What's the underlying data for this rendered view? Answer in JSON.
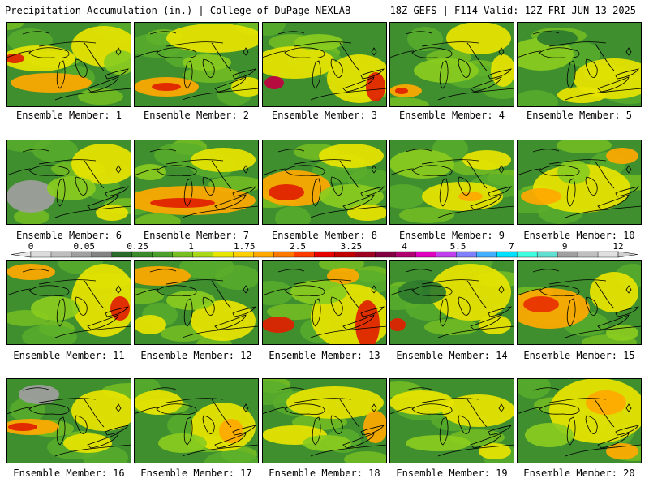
{
  "header": {
    "left": "Precipitation Accumulation (in.) | College of DuPage NEXLAB",
    "right": "18Z GEFS | F114 Valid: 12Z FRI JUN 13 2025"
  },
  "legend": {
    "labels": [
      "0",
      "0.05",
      "0.25",
      "1",
      "1.75",
      "2.5",
      "3.25",
      "4",
      "5.5",
      "7",
      "9",
      "12"
    ],
    "colors": [
      "#dcdcdc",
      "#bebebe",
      "#a0a0a0",
      "#828282",
      "#2a6a2a",
      "#3a8a2a",
      "#4aa02a",
      "#78c020",
      "#a8d818",
      "#e6e600",
      "#ffd000",
      "#ffa800",
      "#ff7800",
      "#ff3c00",
      "#e80000",
      "#c00000",
      "#a00020",
      "#800040",
      "#b00070",
      "#e000c0",
      "#c040f0",
      "#8080ff",
      "#40b0ff",
      "#00e0ff",
      "#40ffe0",
      "#60e0d0",
      "#a0a0a0",
      "#c0c0c0",
      "#e0e0e0"
    ]
  },
  "panels": [
    {
      "label": "Ensemble Member: 1"
    },
    {
      "label": "Ensemble Member: 2"
    },
    {
      "label": "Ensemble Member: 3"
    },
    {
      "label": "Ensemble Member: 4"
    },
    {
      "label": "Ensemble Member: 5"
    },
    {
      "label": "Ensemble Member: 6"
    },
    {
      "label": "Ensemble Member: 7"
    },
    {
      "label": "Ensemble Member: 8"
    },
    {
      "label": "Ensemble Member: 9"
    },
    {
      "label": "Ensemble Member: 10"
    },
    {
      "label": "Ensemble Member: 11"
    },
    {
      "label": "Ensemble Member: 12"
    },
    {
      "label": "Ensemble Member: 13"
    },
    {
      "label": "Ensemble Member: 14"
    },
    {
      "label": "Ensemble Member: 15"
    },
    {
      "label": "Ensemble Member: 16"
    },
    {
      "label": "Ensemble Member: 17"
    },
    {
      "label": "Ensemble Member: 18"
    },
    {
      "label": "Ensemble Member: 19"
    },
    {
      "label": "Ensemble Member: 20"
    }
  ]
}
